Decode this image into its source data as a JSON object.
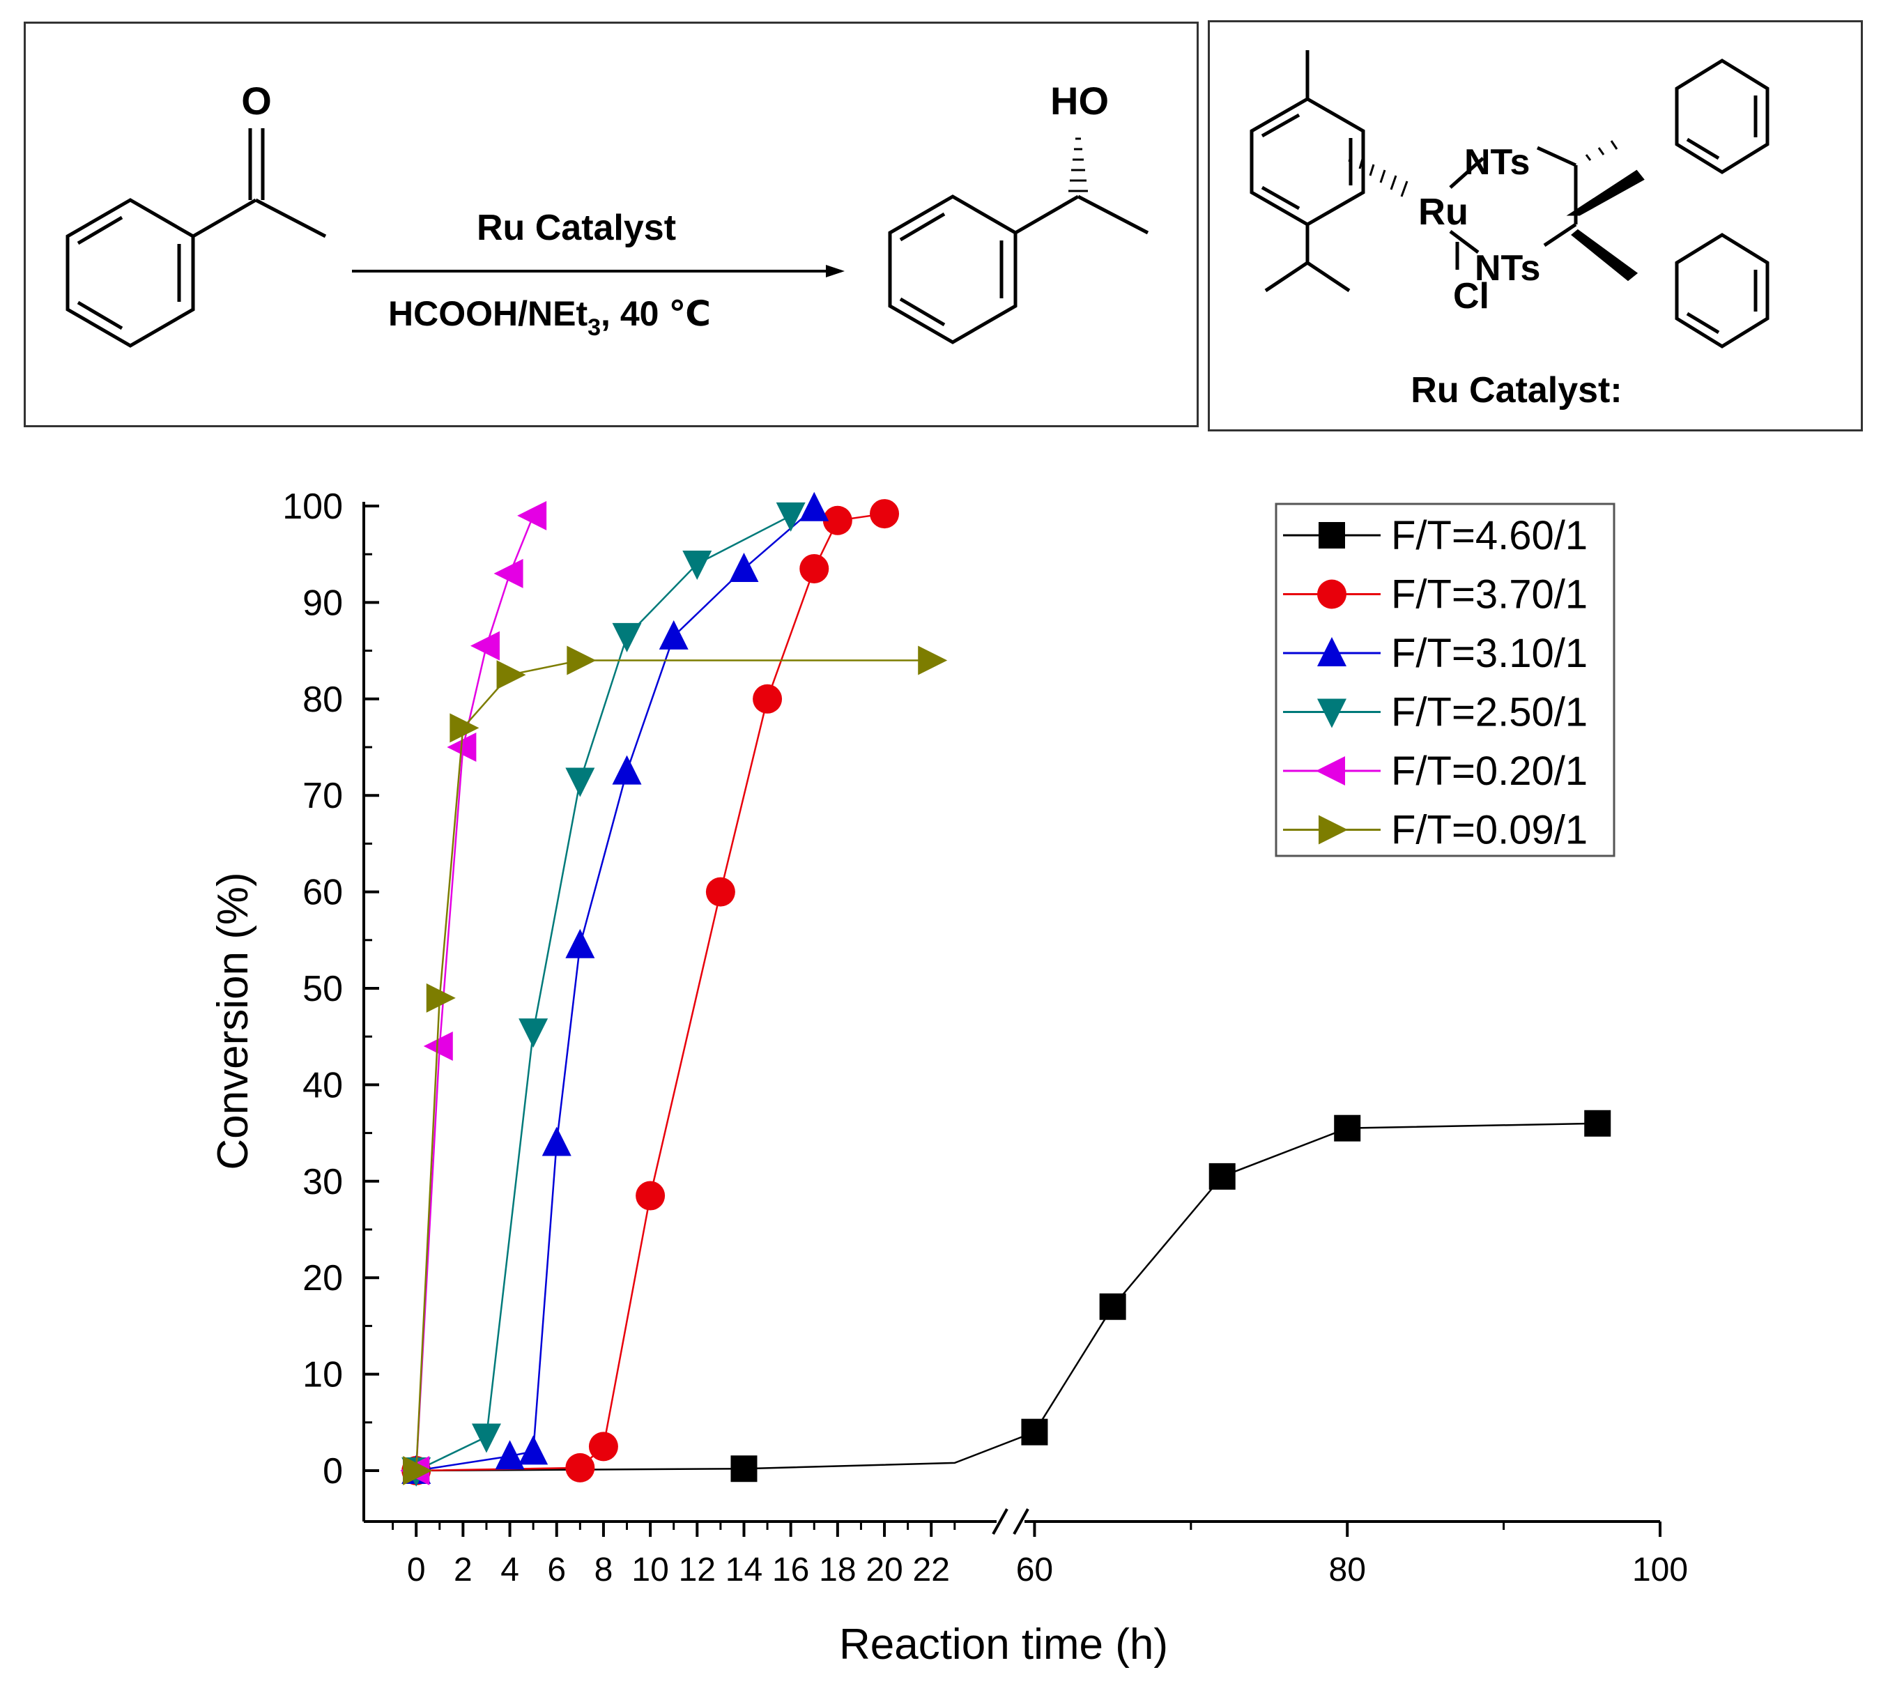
{
  "scheme": {
    "arrow_top_label": "Ru Catalyst",
    "arrow_bottom_main": "HCOOH/NEt",
    "arrow_bottom_sub": "3",
    "arrow_bottom_tail": ", 40 ℃",
    "reactant_label": "O",
    "product_label": "HO"
  },
  "catalyst": {
    "title": "Ru Catalyst:",
    "metal": "Ru",
    "ligand_1": "NTs",
    "ligand_2": "NTs",
    "halide": "Cl"
  },
  "chart_data": {
    "type": "line",
    "title": "",
    "xlabel": "Reaction time (h)",
    "ylabel": "Conversion (%)",
    "ylim": [
      0,
      100
    ],
    "yticks": [
      "0",
      "10",
      "20",
      "30",
      "40",
      "50",
      "60",
      "70",
      "80",
      "90",
      "100"
    ],
    "xlim_segment_1": [
      -2,
      25
    ],
    "xlim_segment_2": [
      59,
      100
    ],
    "xticks_segment_1": [
      "0",
      "2",
      "4",
      "6",
      "8",
      "10",
      "12",
      "14",
      "16",
      "18",
      "20",
      "22"
    ],
    "xticks_segment_2": [
      "60",
      "80",
      "100"
    ],
    "axis_break": true,
    "grid": false,
    "legend_position": "top-right",
    "series": [
      {
        "name": "F/T=4.60/1",
        "color": "#000000",
        "marker": "square",
        "x": [
          0,
          14,
          23,
          60,
          65,
          72,
          80,
          96
        ],
        "y": [
          0,
          0.2,
          0.8,
          4,
          17,
          30.5,
          35.5,
          36
        ],
        "marker_mask": [
          1,
          1,
          0,
          1,
          1,
          1,
          1,
          1
        ]
      },
      {
        "name": "F/T=3.70/1",
        "color": "#e8000b",
        "marker": "circle",
        "x": [
          0,
          7,
          8,
          10,
          13,
          15,
          17,
          18,
          20
        ],
        "y": [
          0,
          0.3,
          2.5,
          28.5,
          60,
          80,
          93.5,
          98.5,
          99.2
        ]
      },
      {
        "name": "F/T=3.10/1",
        "color": "#0000d8",
        "marker": "triangle-up",
        "x": [
          0,
          4,
          5,
          6,
          7,
          9,
          11,
          14,
          17
        ],
        "y": [
          0,
          1.5,
          2,
          34,
          54.5,
          72.5,
          86.5,
          93.5,
          99.8
        ]
      },
      {
        "name": "F/T=2.50/1",
        "color": "#007a7a",
        "marker": "triangle-down",
        "x": [
          0,
          3,
          5,
          7,
          9,
          12,
          16
        ],
        "y": [
          0,
          3.5,
          45.5,
          71.5,
          86.5,
          94,
          99
        ]
      },
      {
        "name": "F/T=0.20/1",
        "color": "#e400e4",
        "marker": "triangle-left",
        "x": [
          0,
          1,
          2,
          3,
          4,
          5
        ],
        "y": [
          0,
          44,
          75,
          85.5,
          93,
          99
        ]
      },
      {
        "name": "F/T=0.09/1",
        "color": "#7d7d00",
        "marker": "triangle-right",
        "x": [
          0,
          1,
          2,
          4,
          7,
          22
        ],
        "y": [
          0,
          49,
          77,
          82.5,
          84,
          84
        ]
      }
    ]
  }
}
